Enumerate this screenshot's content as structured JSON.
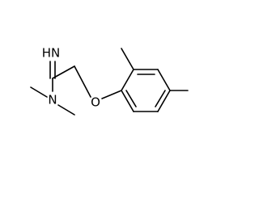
{
  "atoms": {
    "imine": "HN",
    "amine": "N",
    "ether": "O"
  }
}
